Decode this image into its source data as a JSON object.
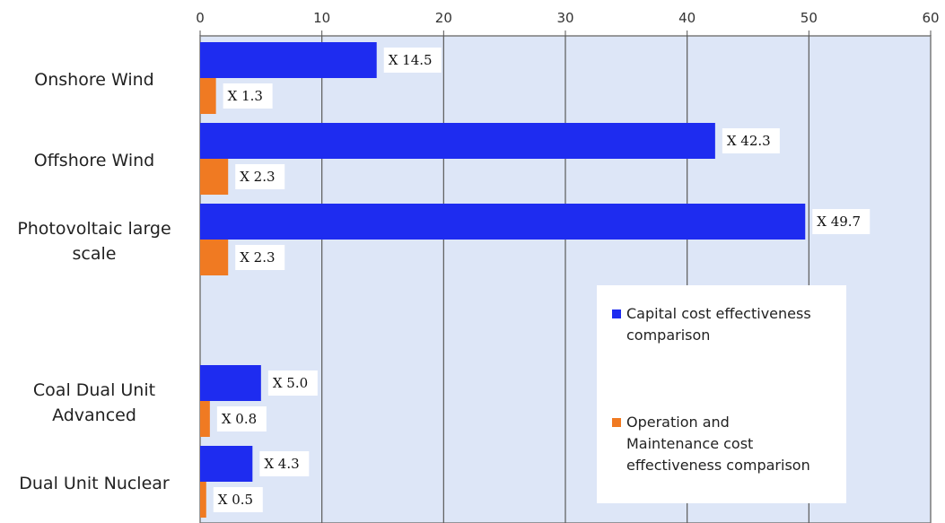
{
  "chart_data": {
    "type": "bar",
    "orientation": "horizontal",
    "categories": [
      "Onshore Wind",
      "Offshore Wind",
      "Photovoltaic large scale",
      "Coal Dual Unit Advanced",
      "Dual Unit Nuclear"
    ],
    "category_label_lines": [
      [
        "Onshore Wind"
      ],
      [
        "Offshore Wind"
      ],
      [
        "Photovoltaic large",
        "scale"
      ],
      [
        "Coal Dual Unit",
        "Advanced"
      ],
      [
        "Dual Unit Nuclear"
      ]
    ],
    "series": [
      {
        "name": "Capital cost effectiveness comparison",
        "legend_lines": [
          "Capital cost effectiveness",
          "comparison"
        ],
        "color": "#1e2cf0",
        "values": [
          14.5,
          42.3,
          49.7,
          5.0,
          4.3
        ],
        "data_labels": [
          "X 14.5",
          "X 42.3",
          "X 49.7",
          "X 5.0",
          "X 4.3"
        ]
      },
      {
        "name": "Operation and Maintenance cost effectiveness comparison",
        "legend_lines": [
          "Operation and",
          "Maintenance cost",
          "effectiveness comparison"
        ],
        "color": "#f07a22",
        "values": [
          1.3,
          2.3,
          2.3,
          0.8,
          0.5
        ],
        "data_labels": [
          "X 1.3",
          "X 2.3",
          "X 2.3",
          "X 0.8",
          "X 0.5"
        ]
      }
    ],
    "x_ticks": [
      "0",
      "10",
      "20",
      "30",
      "40",
      "50",
      "60"
    ],
    "xlim": [
      0,
      60
    ],
    "grid": true,
    "legend_position": "bottom-right",
    "plot_background": "#dde6f7",
    "grid_color": "#5a5a5a"
  }
}
